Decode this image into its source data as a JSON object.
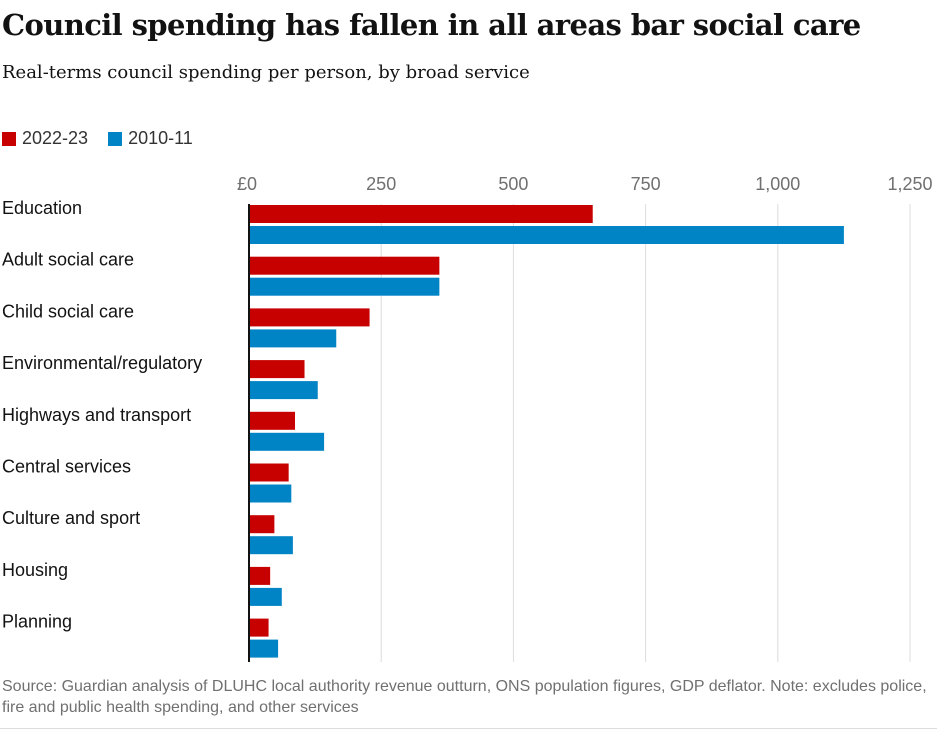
{
  "chart_data": {
    "type": "bar",
    "orientation": "horizontal",
    "title": "Council spending has fallen in all areas bar social care",
    "subtitle": "Real-terms council spending per person, by broad service",
    "source": "Source: Guardian analysis of DLUHC local authority revenue outturn, ONS population figures, GDP deflator. Note: excludes police, fire and public health spending, and other services",
    "categories": [
      "Education",
      "Adult social care",
      "Child social care",
      "Environmental/regulatory",
      "Highways and transport",
      "Central services",
      "Culture and sport",
      "Housing",
      "Planning"
    ],
    "series": [
      {
        "name": "2022-23",
        "color": "#c70000",
        "values": [
          650,
          360,
          228,
          105,
          87,
          75,
          48,
          40,
          37
        ]
      },
      {
        "name": "2010-11",
        "color": "#0084c6",
        "values": [
          1125,
          360,
          165,
          130,
          142,
          80,
          83,
          62,
          55
        ]
      }
    ],
    "xticks": [
      {
        "value": 0,
        "label": "£0"
      },
      {
        "value": 250,
        "label": "250"
      },
      {
        "value": 500,
        "label": "500"
      },
      {
        "value": 750,
        "label": "750"
      },
      {
        "value": 1000,
        "label": "1,000"
      },
      {
        "value": 1250,
        "label": "1,250"
      }
    ],
    "xlim": [
      0,
      1250
    ],
    "grid": true,
    "legend_position": "top-left"
  }
}
